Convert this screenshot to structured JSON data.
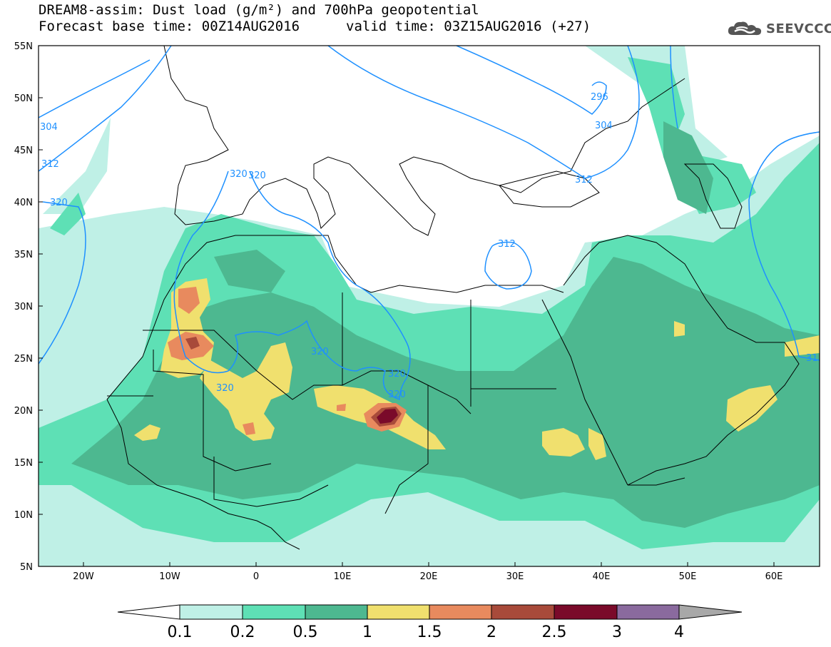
{
  "title": {
    "line1": "DREAM8-assim: Dust load (g/m²) and 700hPa geopotential",
    "line2_left": "Forecast base time: 00Z14AUG2016",
    "line2_right": "valid time: 03Z15AUG2016 (+27)"
  },
  "logo": {
    "text": "SEEVCCC",
    "icon": "cloud-icon"
  },
  "axes": {
    "lat_labels": [
      "55N",
      "50N",
      "45N",
      "40N",
      "35N",
      "30N",
      "25N",
      "20N",
      "15N",
      "10N",
      "5N"
    ],
    "lon_labels": [
      "20W",
      "10W",
      "0",
      "10E",
      "20E",
      "30E",
      "40E",
      "50E",
      "60E"
    ]
  },
  "isolines": {
    "labels": [
      "304",
      "312",
      "320",
      "320",
      "320",
      "320",
      "320",
      "320",
      "320",
      "312",
      "296",
      "304",
      "312",
      "312",
      "31"
    ],
    "color": "#1e90ff"
  },
  "colorbar": {
    "labels": [
      "0.1",
      "0.2",
      "0.5",
      "1",
      "1.5",
      "2",
      "2.5",
      "3",
      "4"
    ],
    "colors": [
      "#ffffff",
      "#bff0e6",
      "#5ee0b5",
      "#4db890",
      "#f0e06e",
      "#e88a5e",
      "#a84a3a",
      "#7a0a2a",
      "#8a6a9e",
      "#a8a8a8"
    ]
  },
  "dust_colors": {
    "d01": "#bff0e6",
    "d02": "#5ee0b5",
    "d05": "#4db890",
    "d1": "#f0e06e",
    "d15": "#e88a5e",
    "d2": "#a84a3a",
    "d25": "#7a0a2a"
  }
}
